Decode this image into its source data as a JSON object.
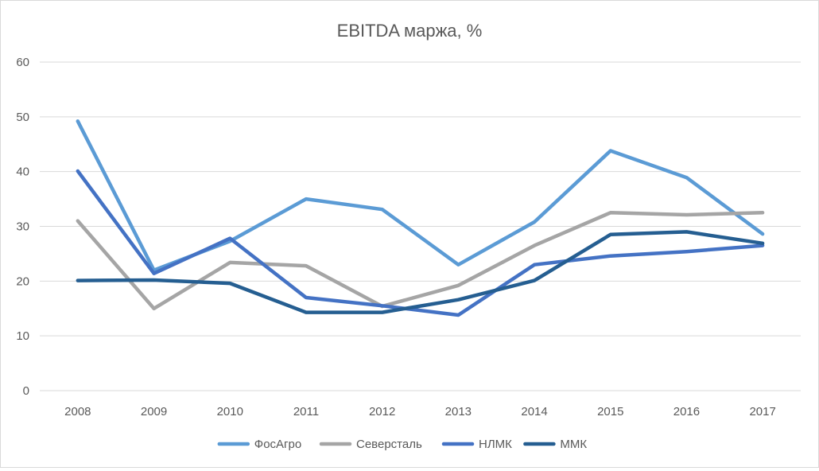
{
  "chart_data": {
    "type": "line",
    "title": "EBITDA маржа, %",
    "xlabel": "",
    "ylabel": "",
    "x": [
      "2008",
      "2009",
      "2010",
      "2011",
      "2012",
      "2013",
      "2014",
      "2015",
      "2016",
      "2017"
    ],
    "ylim": [
      0,
      60
    ],
    "yticks": [
      0,
      10,
      20,
      30,
      40,
      50,
      60
    ],
    "grid": true,
    "legend_position": "bottom",
    "series": [
      {
        "name": "ФосАгро",
        "color": "#5b9bd5",
        "values": [
          49.2,
          22.0,
          27.3,
          35.0,
          33.1,
          23.0,
          30.8,
          43.8,
          38.9,
          28.6
        ]
      },
      {
        "name": "Северсталь",
        "color": "#a5a5a5",
        "values": [
          31.0,
          15.0,
          23.4,
          22.8,
          15.4,
          19.2,
          26.5,
          32.5,
          32.1,
          32.5
        ]
      },
      {
        "name": "НЛМК",
        "color": "#4472c4",
        "values": [
          40.1,
          21.4,
          27.8,
          17.0,
          15.5,
          13.8,
          23.0,
          24.6,
          25.4,
          26.5
        ]
      },
      {
        "name": "ММК",
        "color": "#255e91",
        "values": [
          20.1,
          20.2,
          19.6,
          14.3,
          14.3,
          16.6,
          20.1,
          28.5,
          29.0,
          26.9
        ]
      }
    ]
  }
}
